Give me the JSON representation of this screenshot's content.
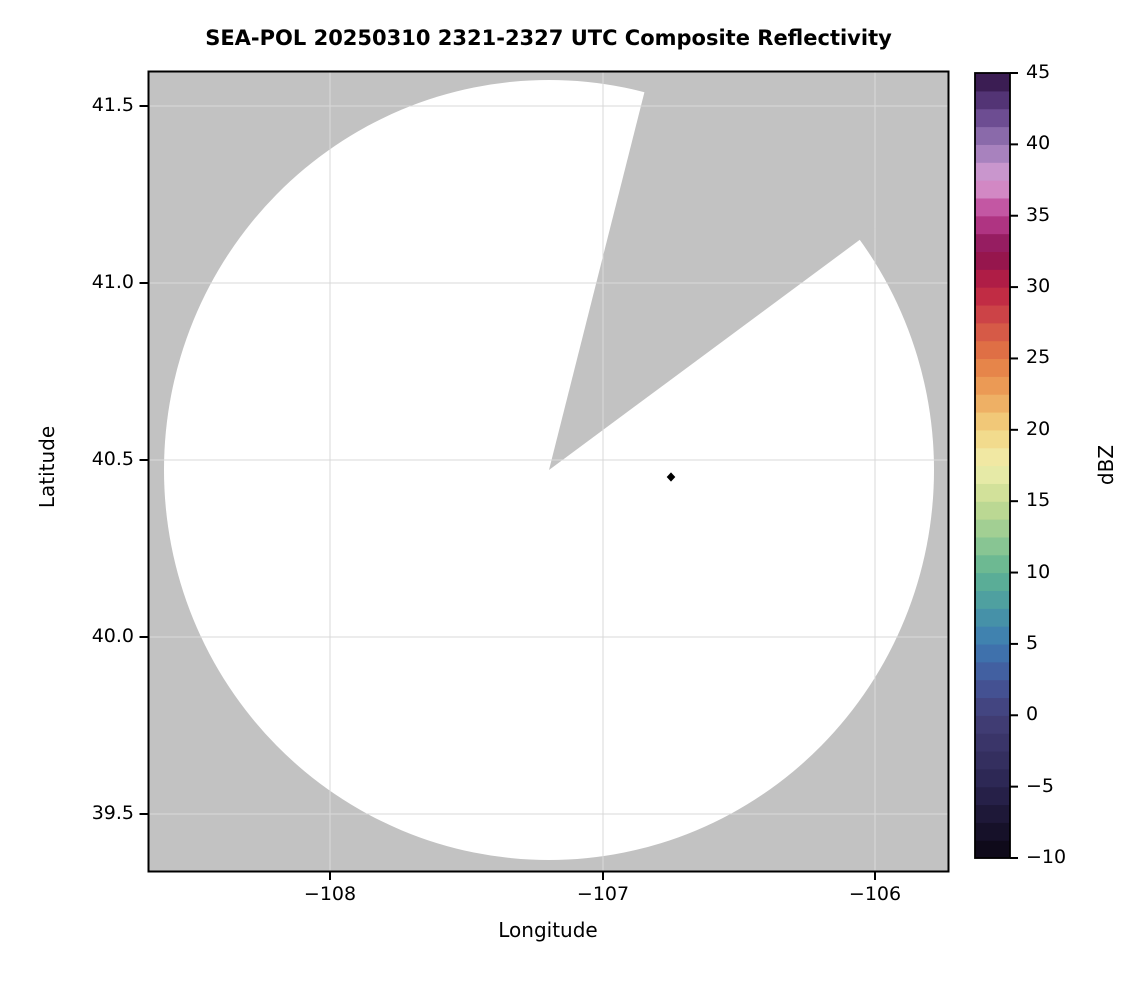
{
  "figure": {
    "title": "SEA-POL 20250310 2321-2327 UTC Composite Reflectivity",
    "background": "#ffffff"
  },
  "axes": {
    "xlabel": "Longitude",
    "ylabel": "Latitude",
    "xticks": [
      "−108",
      "−107",
      "−106"
    ],
    "yticks": [
      "41.5",
      "41.0",
      "40.5",
      "40.0",
      "39.5"
    ],
    "background": "#c2c2c2",
    "grid_color": "#d9d9d9",
    "frame_color": "#000000"
  },
  "colorbar": {
    "label": "dBZ",
    "ticks": [
      "45",
      "40",
      "35",
      "30",
      "25",
      "20",
      "15",
      "10",
      "5",
      "0",
      "−5",
      "−10"
    ],
    "min": -10,
    "max": 45,
    "band_step": 1.25,
    "anchors": [
      {
        "v": -10.0,
        "c": "#0b0612"
      },
      {
        "v": -7.5,
        "c": "#1a1430"
      },
      {
        "v": -5.0,
        "c": "#2a2450"
      },
      {
        "v": -2.5,
        "c": "#373264"
      },
      {
        "v": 0.0,
        "c": "#433f78"
      },
      {
        "v": 2.5,
        "c": "#44579b"
      },
      {
        "v": 5.0,
        "c": "#3d7ab2"
      },
      {
        "v": 7.5,
        "c": "#4999a5"
      },
      {
        "v": 10.0,
        "c": "#5fb392"
      },
      {
        "v": 12.5,
        "c": "#95cb93"
      },
      {
        "v": 15.0,
        "c": "#c8dc93"
      },
      {
        "v": 17.5,
        "c": "#f0efae"
      },
      {
        "v": 20.0,
        "c": "#f2d482"
      },
      {
        "v": 22.5,
        "c": "#eda45b"
      },
      {
        "v": 25.0,
        "c": "#e37a44"
      },
      {
        "v": 27.5,
        "c": "#d14f48"
      },
      {
        "v": 30.0,
        "c": "#bc2043"
      },
      {
        "v": 32.5,
        "c": "#891250"
      },
      {
        "v": 35.0,
        "c": "#bc3f92"
      },
      {
        "v": 37.5,
        "c": "#d9a0d5"
      },
      {
        "v": 40.0,
        "c": "#9878b6"
      },
      {
        "v": 42.5,
        "c": "#5f3f86"
      },
      {
        "v": 45.0,
        "c": "#2f1242"
      }
    ]
  },
  "chart_data": {
    "type": "heatmap",
    "title": "SEA-POL 20250310 2321-2327 UTC Composite Reflectivity",
    "xlabel": "Longitude",
    "ylabel": "Latitude",
    "xlim": [
      -108.67,
      -105.73
    ],
    "ylim": [
      39.33,
      41.61
    ],
    "xticks": [
      -108,
      -107,
      -106
    ],
    "yticks": [
      41.5,
      41.0,
      40.5,
      40.0,
      39.5
    ],
    "grid": true,
    "legend_position": "none",
    "colorbar": {
      "label": "dBZ",
      "range": [
        -10,
        45
      ],
      "tick_interval": 5
    },
    "radar_coverage": {
      "center": {
        "lon": -107.18,
        "lat": 40.47
      },
      "range_km": 120,
      "blocked_sector_azimuth_deg": [
        14,
        53.5
      ],
      "coverage_color": "#ffffff",
      "no_data_color": "#c2c2c2"
    },
    "site_marker": {
      "lon": -106.75,
      "lat": 40.45,
      "shape": "diamond",
      "color": "#000000"
    }
  }
}
